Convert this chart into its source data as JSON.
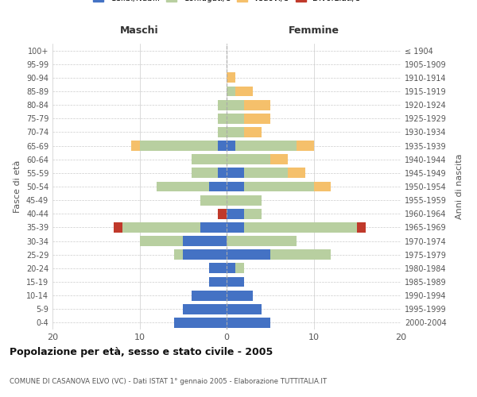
{
  "age_groups": [
    "100+",
    "95-99",
    "90-94",
    "85-89",
    "80-84",
    "75-79",
    "70-74",
    "65-69",
    "60-64",
    "55-59",
    "50-54",
    "45-49",
    "40-44",
    "35-39",
    "30-34",
    "25-29",
    "20-24",
    "15-19",
    "10-14",
    "5-9",
    "0-4"
  ],
  "birth_years": [
    "≤ 1904",
    "1905-1909",
    "1910-1914",
    "1915-1919",
    "1920-1924",
    "1925-1929",
    "1930-1934",
    "1935-1939",
    "1940-1944",
    "1945-1949",
    "1950-1954",
    "1955-1959",
    "1960-1964",
    "1965-1969",
    "1970-1974",
    "1975-1979",
    "1980-1984",
    "1985-1989",
    "1990-1994",
    "1995-1999",
    "2000-2004"
  ],
  "colors": {
    "celibi": "#4472c4",
    "coniugati": "#b8cfa0",
    "vedovi": "#f5c06b",
    "divorziati": "#c0392b"
  },
  "maschi": {
    "celibi": [
      0,
      0,
      0,
      0,
      0,
      0,
      0,
      1,
      0,
      1,
      2,
      0,
      0,
      3,
      5,
      5,
      2,
      2,
      4,
      5,
      6
    ],
    "coniugati": [
      0,
      0,
      0,
      0,
      1,
      1,
      1,
      9,
      4,
      3,
      6,
      3,
      0,
      9,
      5,
      1,
      0,
      0,
      0,
      0,
      0
    ],
    "vedovi": [
      0,
      0,
      0,
      0,
      0,
      0,
      0,
      1,
      0,
      0,
      0,
      0,
      0,
      0,
      0,
      0,
      0,
      0,
      0,
      0,
      0
    ],
    "divorziati": [
      0,
      0,
      0,
      0,
      0,
      0,
      0,
      0,
      0,
      0,
      0,
      0,
      1,
      1,
      0,
      0,
      0,
      0,
      0,
      0,
      0
    ]
  },
  "femmine": {
    "celibi": [
      0,
      0,
      0,
      0,
      0,
      0,
      0,
      1,
      0,
      2,
      2,
      0,
      2,
      2,
      0,
      5,
      1,
      2,
      3,
      4,
      5
    ],
    "coniugati": [
      0,
      0,
      0,
      1,
      2,
      2,
      2,
      7,
      5,
      5,
      8,
      4,
      2,
      13,
      8,
      7,
      1,
      0,
      0,
      0,
      0
    ],
    "vedovi": [
      0,
      0,
      1,
      2,
      3,
      3,
      2,
      2,
      2,
      2,
      2,
      0,
      0,
      0,
      0,
      0,
      0,
      0,
      0,
      0,
      0
    ],
    "divorziati": [
      0,
      0,
      0,
      0,
      0,
      0,
      0,
      0,
      0,
      0,
      0,
      0,
      0,
      1,
      0,
      0,
      0,
      0,
      0,
      0,
      0
    ]
  },
  "xlim": 20,
  "title": "Popolazione per età, sesso e stato civile - 2005",
  "subtitle": "COMUNE DI CASANOVA ELVO (VC) - Dati ISTAT 1° gennaio 2005 - Elaborazione TUTTITALIA.IT",
  "ylabel_left": "Fasce di età",
  "ylabel_right": "Anni di nascita",
  "xlabel_maschi": "Maschi",
  "xlabel_femmine": "Femmine"
}
